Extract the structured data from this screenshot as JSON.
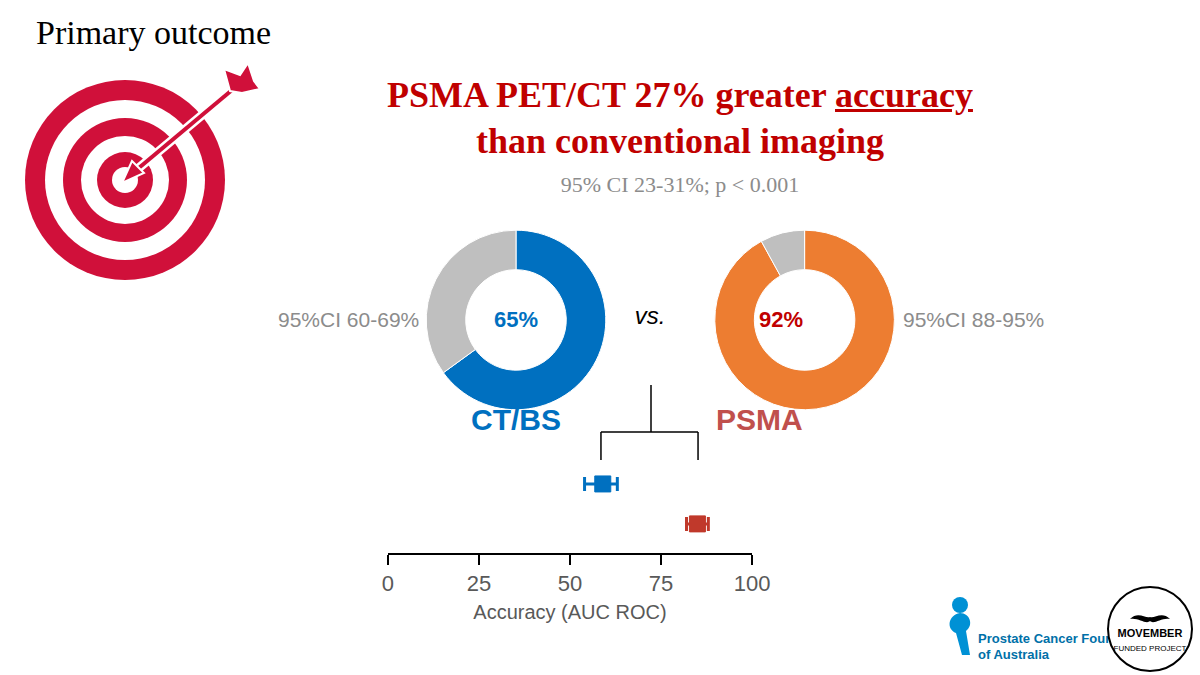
{
  "heading": "Primary outcome",
  "title": [
    "PSMA PET/CT 27% greater accuracy",
    "than conventional imaging"
  ],
  "title_underlined": "accuracy",
  "subtitle": "95% CI 23-31%; p < 0.001",
  "comparison_text": "vs.",
  "logos": [
    "Prostate Cancer Foundation",
    "of Australia",
    "MOVEMBER",
    "FUNDED PROJECT"
  ],
  "chart_data": [
    {
      "type": "pie",
      "title": "CT/BS",
      "categories": [
        null,
        null
      ],
      "values": [
        65,
        35
      ],
      "value_labels": [
        "65%",
        null
      ],
      "colors": [
        "#0070c0",
        "#bfbfbf"
      ],
      "annotation": "95%CI 60-69%"
    },
    {
      "type": "pie",
      "title": "PSMA",
      "categories": [
        null,
        null
      ],
      "values": [
        92,
        8
      ],
      "value_labels": [
        "92%",
        null
      ],
      "colors": [
        "#ed7d31",
        "#bfbfbf"
      ],
      "annotation": "95%CI 88-95%"
    },
    {
      "type": "scatter",
      "xlabel": "Accuracy (AUC ROC)",
      "categories": [
        null,
        null
      ],
      "values": [
        59,
        85
      ],
      "error_low": [
        54,
        82
      ],
      "error_high": [
        63,
        88
      ],
      "colors": [
        "#0070c0",
        "#c0392b"
      ],
      "marker": "square",
      "xlim": [
        0,
        100
      ],
      "xticks": [
        0,
        25,
        50,
        75,
        100
      ],
      "tick_labels": "x",
      "grid": false
    }
  ]
}
